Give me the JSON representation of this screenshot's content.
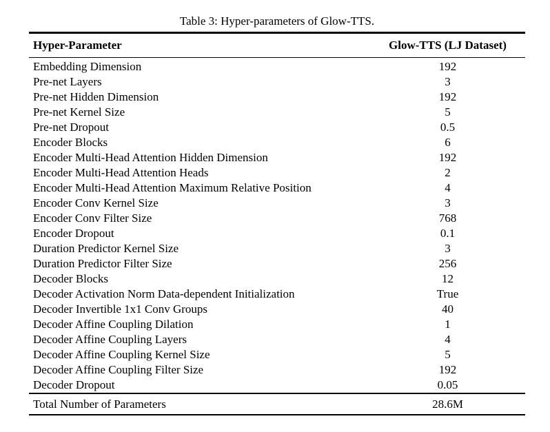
{
  "caption": "Table 3: Hyper-parameters of Glow-TTS.",
  "table": {
    "col1_header": "Hyper-Parameter",
    "col2_header": "Glow-TTS (LJ Dataset)",
    "rows": [
      {
        "name": "Embedding Dimension",
        "value": "192"
      },
      {
        "name": "Pre-net Layers",
        "value": "3"
      },
      {
        "name": "Pre-net Hidden Dimension",
        "value": "192"
      },
      {
        "name": "Pre-net Kernel Size",
        "value": "5"
      },
      {
        "name": "Pre-net Dropout",
        "value": "0.5"
      },
      {
        "name": "Encoder Blocks",
        "value": "6"
      },
      {
        "name": "Encoder Multi-Head Attention Hidden Dimension",
        "value": "192"
      },
      {
        "name": "Encoder Multi-Head Attention Heads",
        "value": "2"
      },
      {
        "name": "Encoder Multi-Head Attention Maximum Relative Position",
        "value": "4"
      },
      {
        "name": "Encoder Conv Kernel Size",
        "value": "3"
      },
      {
        "name": "Encoder Conv Filter Size",
        "value": "768"
      },
      {
        "name": "Encoder Dropout",
        "value": "0.1"
      },
      {
        "name": "Duration Predictor Kernel Size",
        "value": "3"
      },
      {
        "name": "Duration Predictor Filter Size",
        "value": "256"
      },
      {
        "name": "Decoder Blocks",
        "value": "12"
      },
      {
        "name": "Decoder Activation Norm Data-dependent Initialization",
        "value": "True"
      },
      {
        "name": "Decoder Invertible 1x1 Conv Groups",
        "value": "40"
      },
      {
        "name": "Decoder Affine Coupling Dilation",
        "value": "1"
      },
      {
        "name": "Decoder Affine Coupling Layers",
        "value": "4"
      },
      {
        "name": "Decoder Affine Coupling Kernel Size",
        "value": "5"
      },
      {
        "name": "Decoder Affine Coupling Filter Size",
        "value": "192"
      },
      {
        "name": "Decoder Dropout",
        "value": "0.05"
      }
    ],
    "footer": {
      "name": "Total Number of Parameters",
      "value": "28.6M"
    }
  }
}
